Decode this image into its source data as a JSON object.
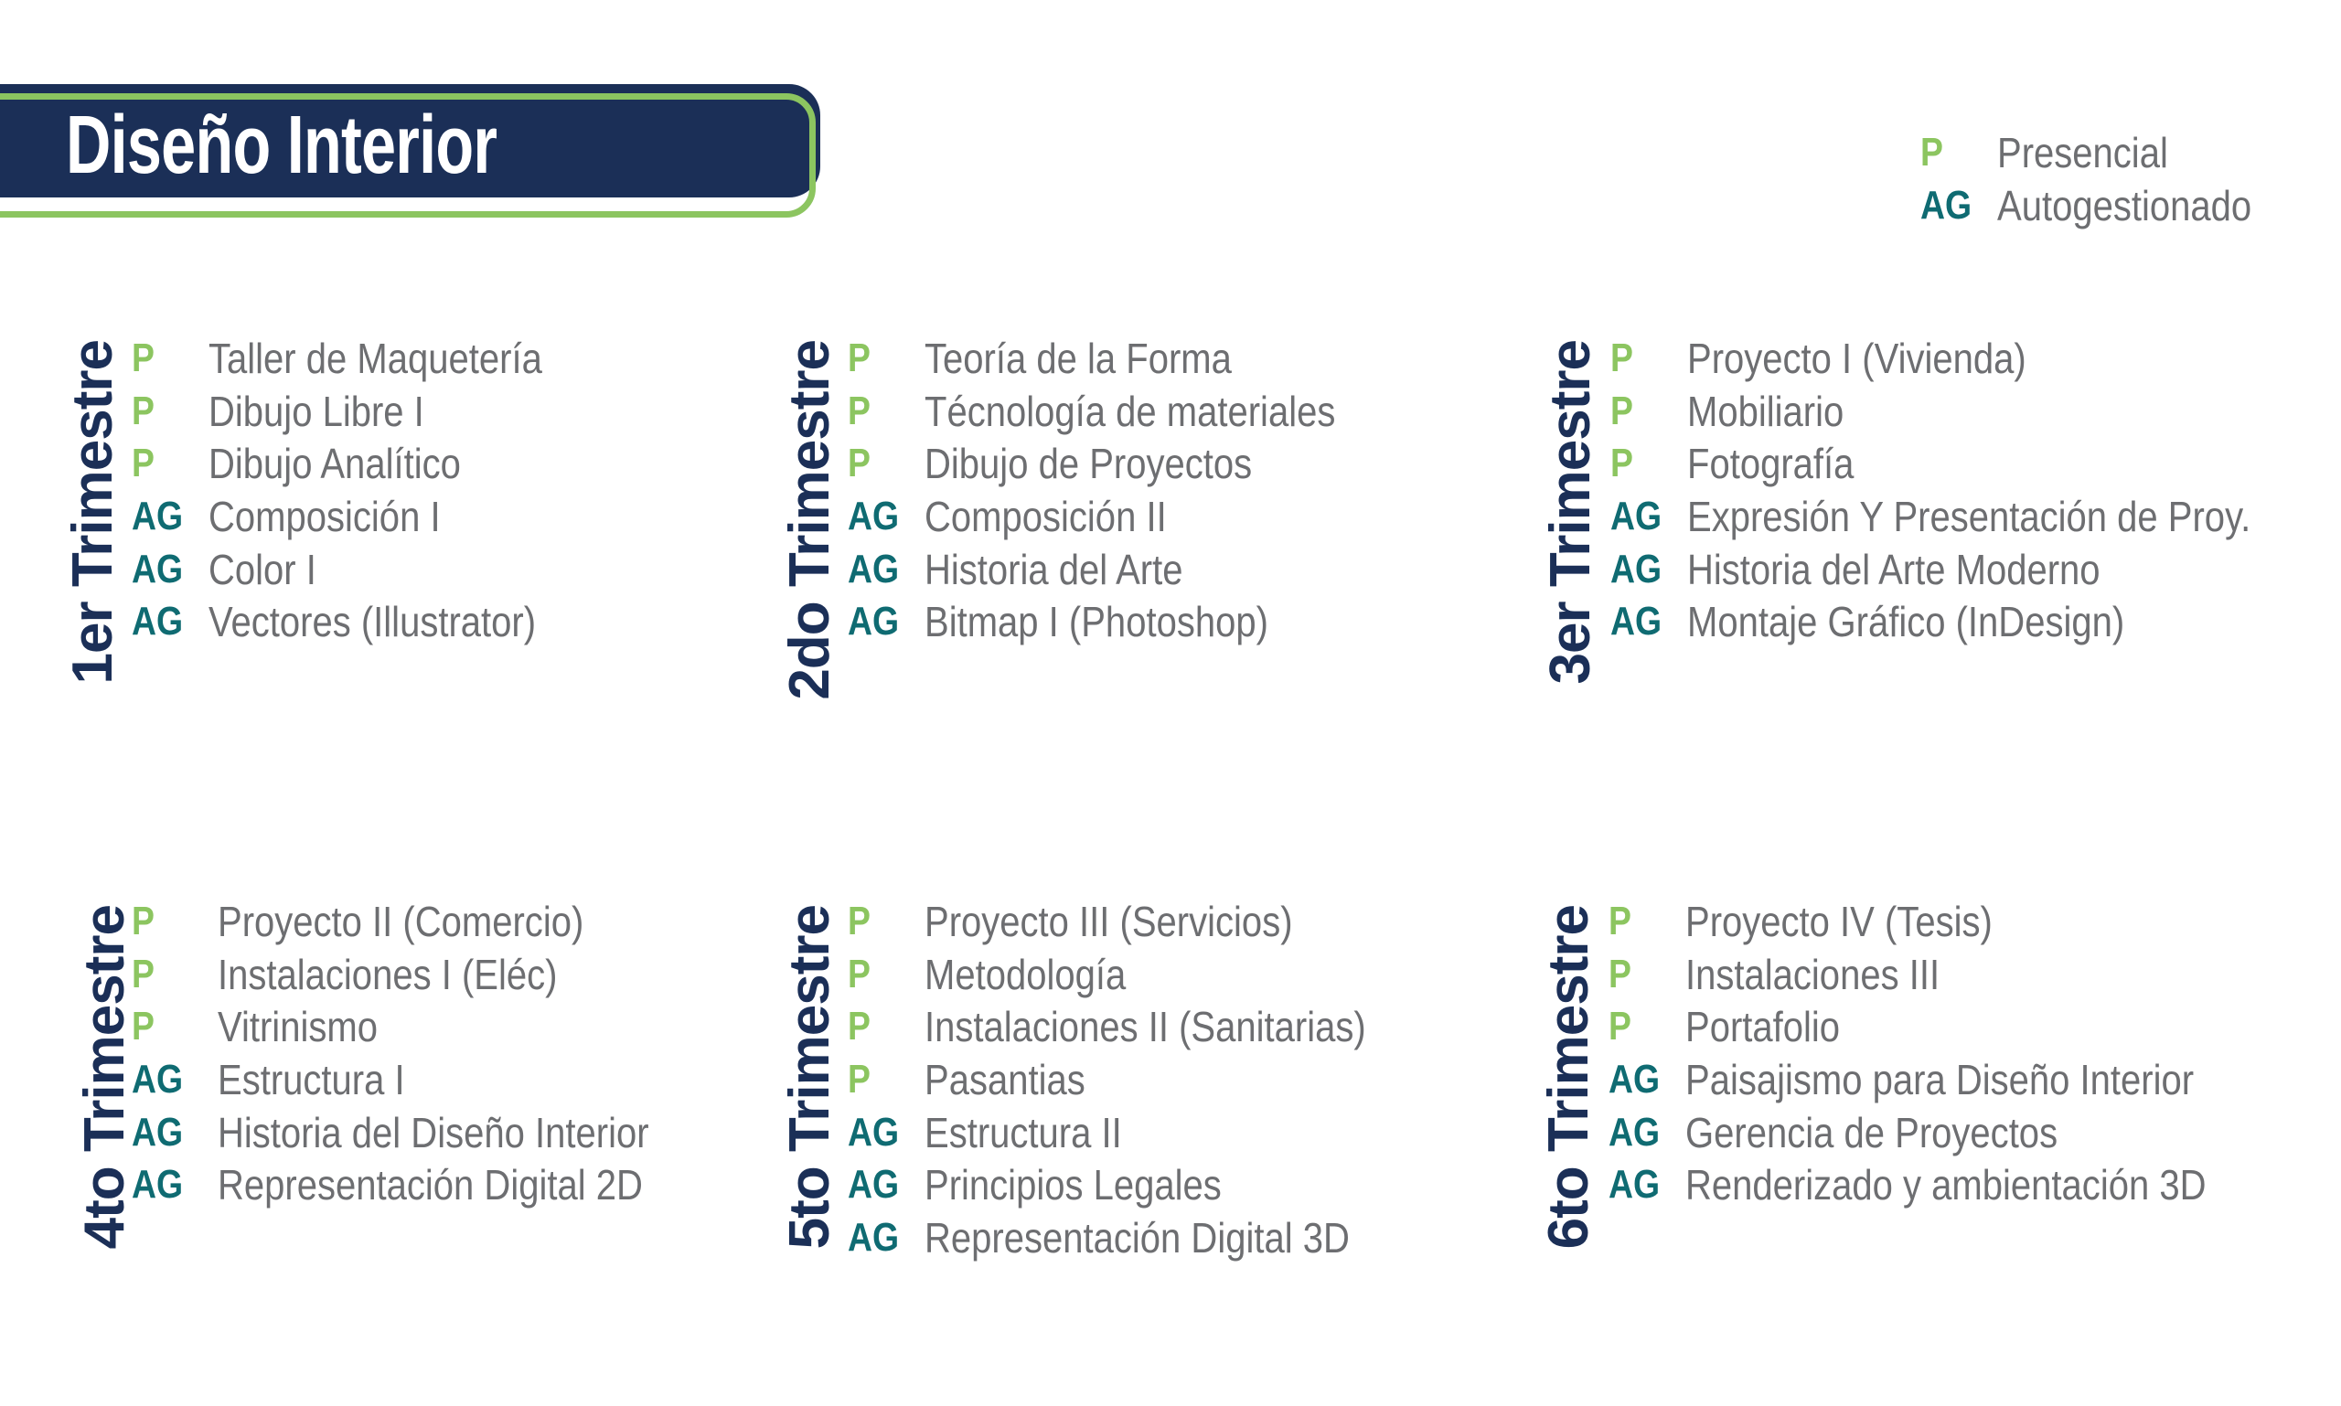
{
  "header": {
    "title": "Diseño Interior"
  },
  "colors": {
    "navy": "#1b2f57",
    "green": "#8cc560",
    "teal": "#0f6b72",
    "text_gray": "#6d6e71"
  },
  "legend": [
    {
      "code": "P",
      "label": "Presencial"
    },
    {
      "code": "AG",
      "label": "Autogestionado"
    }
  ],
  "terms": [
    {
      "label": "1er Trimestre",
      "courses": [
        {
          "code": "P",
          "name": "Taller de Maquetería"
        },
        {
          "code": "P",
          "name": "Dibujo Libre I"
        },
        {
          "code": "P",
          "name": "Dibujo Analítico"
        },
        {
          "code": "AG",
          "name": "Composición I"
        },
        {
          "code": "AG",
          "name": "Color I"
        },
        {
          "code": "AG",
          "name": "Vectores (Illustrator)"
        }
      ]
    },
    {
      "label": "2do Trimestre",
      "courses": [
        {
          "code": "P",
          "name": "Teoría de la Forma"
        },
        {
          "code": "P",
          "name": "Técnología de materiales"
        },
        {
          "code": "P",
          "name": "Dibujo de Proyectos"
        },
        {
          "code": "AG",
          "name": "Composición II"
        },
        {
          "code": "AG",
          "name": "Historia del Arte"
        },
        {
          "code": "AG",
          "name": "Bitmap I (Photoshop)"
        }
      ]
    },
    {
      "label": "3er Trimestre",
      "courses": [
        {
          "code": "P",
          "name": "Proyecto I (Vivienda)"
        },
        {
          "code": "P",
          "name": "Mobiliario"
        },
        {
          "code": "P",
          "name": "Fotografía"
        },
        {
          "code": "AG",
          "name": "Expresión Y Presentación de Proy."
        },
        {
          "code": "AG",
          "name": "Historia del Arte Moderno"
        },
        {
          "code": "AG",
          "name": "Montaje Gráfico (InDesign)"
        }
      ]
    },
    {
      "label": "4to Trimestre",
      "courses": [
        {
          "code": "P",
          "name": "Proyecto II (Comercio)"
        },
        {
          "code": "P",
          "name": "Instalaciones I (Eléc)"
        },
        {
          "code": "P",
          "name": "Vitrinismo"
        },
        {
          "code": "AG",
          "name": "Estructura I"
        },
        {
          "code": "AG",
          "name": "Historia del Diseño Interior"
        },
        {
          "code": "AG",
          "name": "Representación Digital 2D"
        }
      ]
    },
    {
      "label": "5to Trimestre",
      "courses": [
        {
          "code": "P",
          "name": "Proyecto III (Servicios)"
        },
        {
          "code": "P",
          "name": "Metodología"
        },
        {
          "code": "P",
          "name": "Instalaciones II (Sanitarias)"
        },
        {
          "code": "P",
          "name": "Pasantias"
        },
        {
          "code": "AG",
          "name": "Estructura II"
        },
        {
          "code": "AG",
          "name": "Principios Legales"
        },
        {
          "code": "AG",
          "name": "Representación Digital 3D"
        }
      ]
    },
    {
      "label": "6to Trimestre",
      "courses": [
        {
          "code": "P",
          "name": "Proyecto IV (Tesis)"
        },
        {
          "code": "P",
          "name": "Instalaciones III"
        },
        {
          "code": "P",
          "name": "Portafolio"
        },
        {
          "code": "AG",
          "name": "Paisajismo para Diseño Interior"
        },
        {
          "code": "AG",
          "name": "Gerencia de Proyectos"
        },
        {
          "code": "AG",
          "name": "Renderizado y ambientación  3D"
        }
      ]
    }
  ]
}
